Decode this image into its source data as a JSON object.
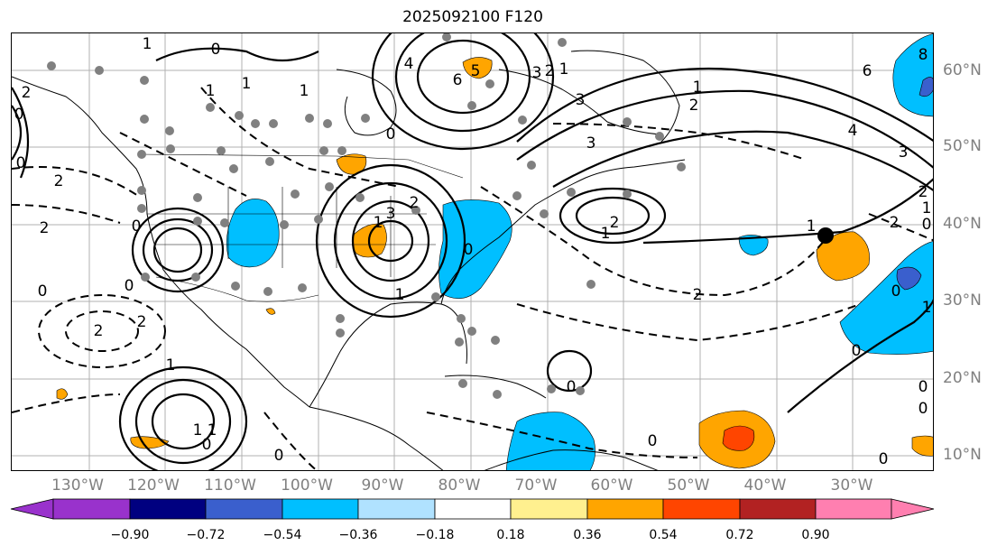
{
  "title": "2025092100 F120",
  "lon_labels": [
    "130°W",
    "120°W",
    "110°W",
    "100°W",
    "90°W",
    "80°W",
    "70°W",
    "60°W",
    "50°W",
    "40°W",
    "30°W"
  ],
  "lat_labels": [
    "60°N",
    "50°N",
    "40°N",
    "30°N",
    "20°N",
    "10°N"
  ],
  "colorbar": {
    "ticks": [
      "−0.90",
      "−0.72",
      "−0.54",
      "−0.36",
      "−0.18",
      "0.18",
      "0.36",
      "0.54",
      "0.72",
      "0.90"
    ],
    "colors": [
      "#9932cc",
      "#000080",
      "#3a5fcd",
      "#00bfff",
      "#b0e2ff",
      "#ffffff",
      "#fff08f",
      "#ffa500",
      "#ff4500",
      "#b22222",
      "#ff7fb0"
    ]
  },
  "contour_labels": [
    "1",
    "0",
    "1",
    "2",
    "1",
    "1",
    "0",
    "4",
    "6",
    "5",
    "3",
    "2",
    "1",
    "3",
    "2",
    "1",
    "0",
    "8",
    "6",
    "4",
    "3",
    "2",
    "1",
    "0",
    "3",
    "0",
    "1",
    "2",
    "2",
    "0",
    "2",
    "2",
    "1",
    "0",
    "0",
    "1",
    "2",
    "0",
    "3",
    "0",
    "1",
    "0",
    "0",
    "0",
    "1",
    "2",
    "1",
    "0",
    "2",
    "0",
    "1",
    "0",
    "2",
    "1",
    "0"
  ],
  "colors": {
    "background": "#ffffff",
    "axis_text": "#808080",
    "neg_fill": "#00bfff",
    "pos_fill": "#ffa500",
    "strong_pos_fill": "#ff4500",
    "strong_neg_fill": "#3a5fcd",
    "station_dot": "#808080"
  }
}
